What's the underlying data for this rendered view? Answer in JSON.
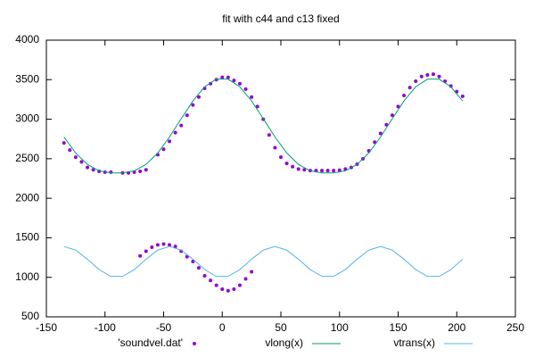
{
  "chart_data": {
    "type": "scatter",
    "title": "fit with c44 and c13 fixed",
    "xlim": [
      -150,
      250
    ],
    "xticks": [
      -150,
      -100,
      -50,
      0,
      50,
      100,
      150,
      200,
      250
    ],
    "ylim": [
      500,
      4000
    ],
    "yticks": [
      500,
      1000,
      1500,
      2000,
      2500,
      3000,
      3500,
      4000
    ],
    "grid": false,
    "legend": "bottom",
    "series": [
      {
        "name": "'soundvel.dat'",
        "type": "scatter",
        "color": "#9400d3",
        "x": [
          -135,
          -130,
          -125,
          -120,
          -115,
          -110,
          -105,
          -100,
          -95,
          -85,
          -80,
          -75,
          -70,
          -65,
          -55,
          -50,
          -45,
          -40,
          -35,
          -30,
          -25,
          -20,
          -15,
          -10,
          -5,
          0,
          5,
          10,
          15,
          20,
          25,
          30,
          35,
          40,
          45,
          50,
          55,
          60,
          65,
          70,
          75,
          80,
          85,
          90,
          95,
          100,
          105,
          110,
          115,
          120,
          125,
          130,
          135,
          140,
          145,
          150,
          155,
          160,
          165,
          170,
          175,
          180,
          185,
          190,
          195,
          200,
          205,
          -70,
          -65,
          -60,
          -55,
          -50,
          -45,
          -40,
          -35,
          -30,
          -25,
          -20,
          -15,
          -10,
          -5,
          0,
          5,
          10,
          15,
          20,
          25
        ],
        "values": [
          2700,
          2610,
          2520,
          2460,
          2390,
          2360,
          2340,
          2330,
          2330,
          2320,
          2320,
          2330,
          2340,
          2360,
          2550,
          2620,
          2720,
          2830,
          2920,
          3050,
          3180,
          3280,
          3390,
          3450,
          3500,
          3530,
          3530,
          3490,
          3450,
          3380,
          3280,
          3160,
          3000,
          2800,
          2640,
          2520,
          2440,
          2400,
          2370,
          2360,
          2350,
          2350,
          2350,
          2350,
          2350,
          2355,
          2370,
          2390,
          2430,
          2500,
          2600,
          2710,
          2820,
          2930,
          3050,
          3160,
          3300,
          3400,
          3480,
          3540,
          3560,
          3570,
          3540,
          3480,
          3420,
          3350,
          3290,
          1270,
          1330,
          1380,
          1410,
          1420,
          1410,
          1390,
          1330,
          1260,
          1200,
          1120,
          1020,
          960,
          900,
          850,
          830,
          850,
          900,
          980,
          1070
        ]
      },
      {
        "name": "vlong(x)",
        "type": "line",
        "color": "#009e73",
        "x": [
          -135,
          -125,
          -115,
          -105,
          -95,
          -85,
          -75,
          -65,
          -55,
          -45,
          -35,
          -25,
          -15,
          -5,
          5,
          15,
          25,
          35,
          45,
          55,
          65,
          75,
          85,
          95,
          105,
          115,
          125,
          135,
          145,
          155,
          165,
          175,
          185,
          195,
          205
        ],
        "values": [
          2775,
          2573,
          2428,
          2347,
          2321,
          2321,
          2347,
          2428,
          2573,
          2775,
          3006,
          3231,
          3410,
          3507,
          3507,
          3410,
          3231,
          3006,
          2775,
          2573,
          2428,
          2347,
          2321,
          2321,
          2347,
          2428,
          2573,
          2775,
          3006,
          3231,
          3410,
          3507,
          3507,
          3410,
          3231
        ]
      },
      {
        "name": "vtrans(x)",
        "type": "line",
        "color": "#56b4e9",
        "x": [
          -135,
          -125,
          -115,
          -105,
          -95,
          -85,
          -75,
          -65,
          -55,
          -45,
          -35,
          -25,
          -15,
          -5,
          5,
          15,
          25,
          35,
          45,
          55,
          65,
          75,
          85,
          95,
          105,
          115,
          125,
          135,
          145,
          155,
          165,
          175,
          185,
          195,
          205
        ],
        "values": [
          1390,
          1344,
          1229,
          1098,
          1012,
          1012,
          1098,
          1229,
          1344,
          1390,
          1344,
          1229,
          1098,
          1012,
          1012,
          1098,
          1229,
          1344,
          1390,
          1344,
          1229,
          1098,
          1012,
          1012,
          1098,
          1229,
          1344,
          1390,
          1344,
          1229,
          1098,
          1012,
          1012,
          1098,
          1229
        ]
      }
    ]
  }
}
